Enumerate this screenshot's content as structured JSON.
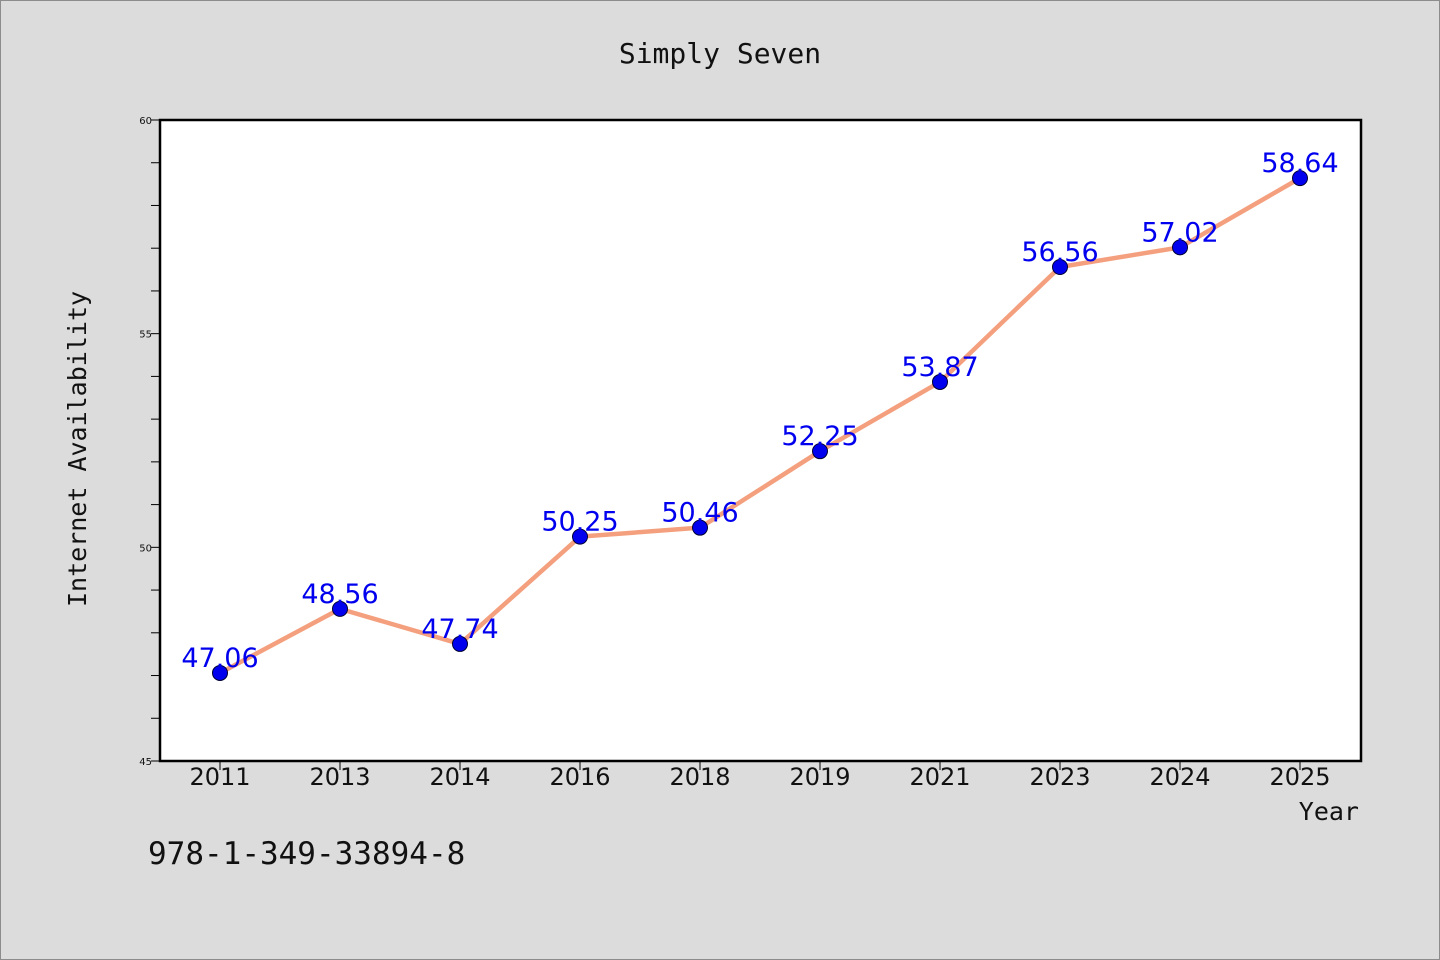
{
  "chart_data": {
    "type": "line",
    "title": "Simply Seven",
    "xlabel": "Year",
    "ylabel": "Internet Availability",
    "categories": [
      "2011",
      "2013",
      "2014",
      "2016",
      "2018",
      "2019",
      "2021",
      "2023",
      "2024",
      "2025"
    ],
    "series": [
      {
        "values": [
          47.06,
          48.56,
          47.74,
          50.25,
          50.46,
          52.25,
          53.87,
          56.56,
          57.02,
          58.64
        ],
        "data_labels": [
          "47.06",
          "48.56",
          "47.74",
          "50.25",
          "50.46",
          "52.25",
          "53.87",
          "56.56",
          "57.02",
          "58.64"
        ]
      }
    ],
    "ylim": [
      45,
      60
    ],
    "y_ticks": [
      "45",
      "50",
      "55",
      "60"
    ],
    "y_minor_step": 1,
    "grid": false,
    "line_color": "#f4a07e",
    "marker_color": "#0000ee",
    "label_color": "#0000ee"
  },
  "footnote": "978-1-349-33894-8"
}
